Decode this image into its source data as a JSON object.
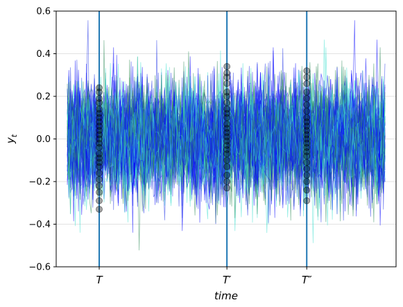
{
  "chart_data": {
    "type": "line",
    "title": "",
    "xlabel": "time",
    "ylabel_main": "y",
    "ylabel_sub": "t",
    "ylim": [
      -0.6,
      0.6
    ],
    "yticks": [
      -0.6,
      -0.4,
      -0.2,
      0.0,
      0.2,
      0.4,
      0.6
    ],
    "ytick_labels": [
      "−0.6",
      "−0.4",
      "−0.2",
      "0.0",
      "0.2",
      "0.4",
      "0.6"
    ],
    "grid": "horizontal",
    "x_start": 0,
    "x_end": 199,
    "series_count": 60,
    "series_colors": [
      "#0000ff",
      "#2e8b57",
      "#40e0d0",
      "#1a2ee6"
    ],
    "noise_std": 0.13,
    "markers": [
      {
        "label": "T",
        "x": 20
      },
      {
        "label": "T′",
        "x": 100
      },
      {
        "label": "T″",
        "x": 150
      }
    ],
    "marker_line_color": "#1f77b4",
    "cross_sections": [
      [
        0.24,
        0.22,
        0.19,
        0.17,
        0.14,
        0.12,
        0.1,
        0.08,
        0.06,
        0.04,
        0.02,
        0.0,
        -0.02,
        -0.04,
        -0.07,
        -0.09,
        -0.11,
        -0.13,
        -0.16,
        -0.19,
        -0.22,
        -0.25,
        -0.29,
        -0.33
      ],
      [
        0.34,
        0.31,
        0.29,
        0.26,
        0.22,
        0.2,
        0.17,
        0.14,
        0.12,
        0.1,
        0.07,
        0.05,
        0.03,
        0.01,
        -0.01,
        -0.03,
        -0.05,
        -0.07,
        -0.1,
        -0.13,
        -0.17,
        -0.2,
        -0.23
      ],
      [
        0.32,
        0.29,
        0.26,
        0.22,
        0.19,
        0.16,
        0.13,
        0.1,
        0.08,
        0.06,
        0.04,
        0.02,
        0.0,
        -0.02,
        -0.04,
        -0.06,
        -0.08,
        -0.11,
        -0.14,
        -0.17,
        -0.2,
        -0.24,
        -0.29
      ]
    ]
  }
}
